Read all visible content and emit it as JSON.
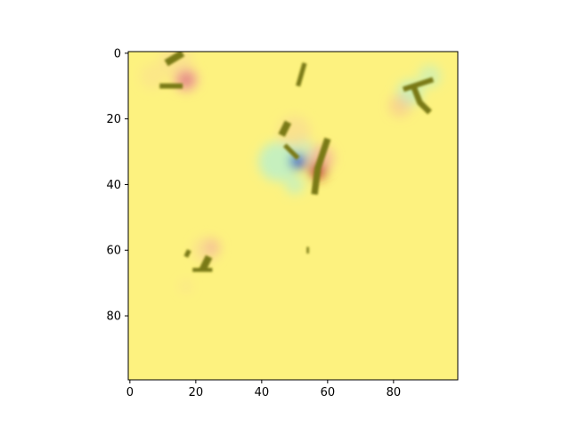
{
  "chart_data": {
    "type": "heatmap",
    "title": "",
    "xlabel": "",
    "ylabel": "",
    "xlim": [
      -0.5,
      99.5
    ],
    "ylim": [
      99.5,
      -0.5
    ],
    "y_axis_inverted": true,
    "grid": false,
    "colorbar": false,
    "x_ticks": [
      0,
      20,
      40,
      60,
      80
    ],
    "y_ticks": [
      0,
      20,
      40,
      60,
      80
    ],
    "x_tick_labels": [
      "0",
      "20",
      "40",
      "60",
      "80"
    ],
    "y_tick_labels": [
      "0",
      "20",
      "40",
      "60",
      "80"
    ],
    "background_value_color": "#fdf27f",
    "colors": {
      "stroke_olive": "#7a7a12",
      "warm_pink": "#f2a0a0",
      "warm_red": "#b32626",
      "cool_cyan": "#a8f0e0",
      "cool_blue": "#1d3cc8",
      "faint_orange": "#f8d598"
    },
    "image_size": [
      100,
      100
    ],
    "strokes": [
      {
        "points": [
          [
            11,
            3
          ],
          [
            16,
            0
          ]
        ],
        "w": 2.2
      },
      {
        "points": [
          [
            9,
            10
          ],
          [
            16,
            10
          ]
        ],
        "w": 1.6
      },
      {
        "points": [
          [
            53,
            3
          ],
          [
            51,
            10
          ]
        ],
        "w": 1.4
      },
      {
        "points": [
          [
            83,
            11
          ],
          [
            92,
            8
          ]
        ],
        "w": 1.6
      },
      {
        "points": [
          [
            86,
            10
          ],
          [
            88,
            15
          ],
          [
            91,
            18
          ]
        ],
        "w": 1.8
      },
      {
        "points": [
          [
            48,
            21
          ],
          [
            46,
            25
          ]
        ],
        "w": 2.2
      },
      {
        "points": [
          [
            47,
            28
          ],
          [
            51,
            32
          ]
        ],
        "w": 1.4
      },
      {
        "points": [
          [
            60,
            26
          ],
          [
            57,
            35
          ],
          [
            56,
            43
          ]
        ],
        "w": 2.0
      },
      {
        "points": [
          [
            18,
            60
          ],
          [
            17,
            62
          ]
        ],
        "w": 1.4
      },
      {
        "points": [
          [
            24,
            62
          ],
          [
            22,
            66
          ]
        ],
        "w": 2.2
      },
      {
        "points": [
          [
            19,
            66
          ],
          [
            25,
            66
          ]
        ],
        "w": 1.2
      },
      {
        "points": [
          [
            54,
            59
          ],
          [
            54,
            61
          ]
        ],
        "w": 0.7
      }
    ],
    "blobs": [
      {
        "x": 17,
        "y": 8,
        "r": 3.5,
        "color": "warm_pink",
        "opacity": 0.9
      },
      {
        "x": 17,
        "y": 8,
        "r": 1.5,
        "color": "warm_red",
        "opacity": 0.5
      },
      {
        "x": 14,
        "y": 2,
        "r": 5,
        "color": "faint_orange",
        "opacity": 0.45
      },
      {
        "x": 7,
        "y": 7,
        "r": 4,
        "color": "faint_orange",
        "opacity": 0.35
      },
      {
        "x": 85,
        "y": 12,
        "r": 4,
        "color": "cool_cyan",
        "opacity": 0.55
      },
      {
        "x": 91,
        "y": 7,
        "r": 3.5,
        "color": "cool_cyan",
        "opacity": 0.45
      },
      {
        "x": 82,
        "y": 16,
        "r": 3.5,
        "color": "warm_pink",
        "opacity": 0.35
      },
      {
        "x": 45,
        "y": 33,
        "r": 6,
        "color": "cool_cyan",
        "opacity": 0.65
      },
      {
        "x": 52,
        "y": 30,
        "r": 4,
        "color": "cool_cyan",
        "opacity": 0.55
      },
      {
        "x": 50,
        "y": 40,
        "r": 3,
        "color": "cool_cyan",
        "opacity": 0.55
      },
      {
        "x": 50,
        "y": 24,
        "r": 5,
        "color": "faint_orange",
        "opacity": 0.55
      },
      {
        "x": 58,
        "y": 32,
        "r": 4,
        "color": "warm_pink",
        "opacity": 0.6
      },
      {
        "x": 57,
        "y": 36,
        "r": 2.5,
        "color": "warm_red",
        "opacity": 0.85
      },
      {
        "x": 51,
        "y": 33,
        "r": 2.3,
        "color": "cool_blue",
        "opacity": 0.95
      },
      {
        "x": 23,
        "y": 60,
        "r": 4,
        "color": "faint_orange",
        "opacity": 0.55
      },
      {
        "x": 25,
        "y": 59,
        "r": 2.5,
        "color": "warm_pink",
        "opacity": 0.45
      },
      {
        "x": 17,
        "y": 71,
        "r": 2,
        "color": "faint_orange",
        "opacity": 0.35
      }
    ]
  }
}
